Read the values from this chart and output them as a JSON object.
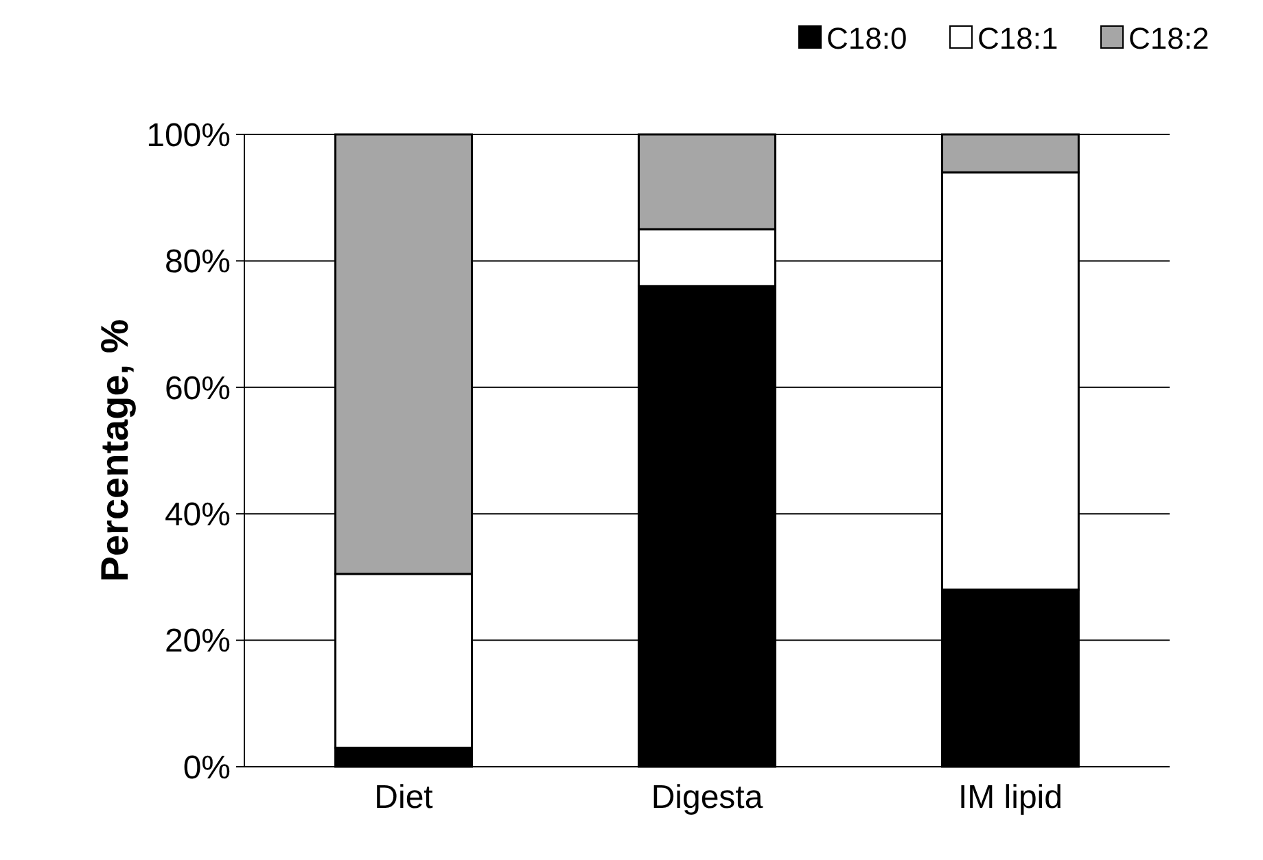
{
  "chart_data": {
    "type": "bar",
    "stacked": true,
    "ylabel": "Percentage, %",
    "categories": [
      "Diet",
      "Digesta",
      "IM lipid"
    ],
    "series": [
      {
        "name": "C18:0",
        "color": "#000000",
        "values": [
          3,
          76,
          28
        ]
      },
      {
        "name": "C18:1",
        "color": "#ffffff",
        "values": [
          27.5,
          9,
          66
        ]
      },
      {
        "name": "C18:2",
        "color": "#a6a6a6",
        "values": [
          69.5,
          15,
          6
        ]
      }
    ],
    "ylim": [
      0,
      100
    ],
    "yticks": [
      {
        "value": 0,
        "label": "0%"
      },
      {
        "value": 20,
        "label": "20%"
      },
      {
        "value": 40,
        "label": "40%"
      },
      {
        "value": 60,
        "label": "60%"
      },
      {
        "value": 80,
        "label": "80%"
      },
      {
        "value": 100,
        "label": "100%"
      }
    ],
    "grid": "y",
    "legend": "top"
  }
}
